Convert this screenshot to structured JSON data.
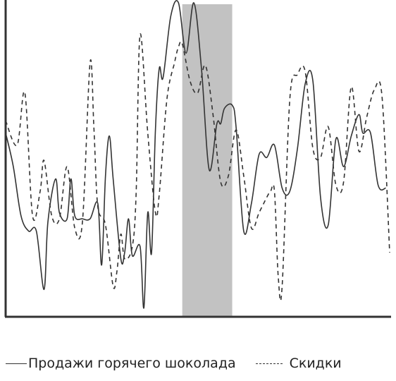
{
  "chart_data": {
    "type": "line",
    "title": "",
    "xlabel": "",
    "ylabel": "",
    "grid": false,
    "ticks_shown": false,
    "legend_position": "bottom",
    "x_range": [
      0,
      100
    ],
    "y_range": [
      0,
      100
    ],
    "highlight_band": {
      "x_start": 46,
      "x_end": 59,
      "color": "#c2c2c2"
    },
    "series": [
      {
        "name": "Продажи горячего шоколада",
        "style": "solid",
        "color": "#333333",
        "x": [
          0,
          2,
          4,
          6,
          8,
          10,
          11,
          13,
          14,
          16,
          17,
          18,
          20,
          22,
          24,
          25,
          26,
          27,
          28,
          30,
          31,
          32,
          33,
          35,
          36,
          37,
          38,
          39,
          40,
          41,
          43,
          45,
          47,
          49,
          51,
          53,
          55,
          56,
          57,
          59,
          60,
          62,
          64,
          66,
          68,
          70,
          72,
          74,
          76,
          78,
          80,
          82,
          84,
          86,
          88,
          90,
          92,
          93,
          95,
          97,
          99
        ],
        "y": [
          59,
          48,
          32,
          27,
          27,
          8,
          30,
          44,
          33,
          31,
          44,
          32,
          31,
          31,
          36,
          16,
          45,
          58,
          44,
          18,
          20,
          31,
          19,
          22,
          2,
          33,
          20,
          60,
          80,
          77,
          97,
          102,
          85,
          102,
          80,
          47,
          62,
          62,
          67,
          68,
          61,
          27,
          36,
          52,
          51,
          55,
          41,
          40,
          54,
          75,
          76,
          38,
          29,
          57,
          48,
          58,
          65,
          59,
          59,
          42,
          41
        ]
      },
      {
        "name": "Скидки",
        "style": "dashed",
        "color": "#333333",
        "x": [
          0,
          3,
          5,
          7,
          9,
          10,
          12,
          14,
          16,
          18,
          20,
          22,
          23,
          24,
          26,
          28,
          29,
          30,
          31,
          33,
          34,
          35,
          37,
          39,
          40,
          42,
          44,
          45,
          46,
          48,
          50,
          52,
          54,
          56,
          58,
          60,
          62,
          64,
          66,
          68,
          69,
          70,
          71,
          72,
          74,
          76,
          78,
          80,
          82,
          84,
          86,
          88,
          90,
          92,
          94,
          96,
          98,
          100
        ],
        "y": [
          63,
          55,
          72,
          32,
          40,
          50,
          32,
          31,
          48,
          28,
          30,
          82,
          60,
          35,
          29,
          9,
          14,
          26,
          18,
          22,
          40,
          91,
          59,
          33,
          39,
          70,
          82,
          87,
          88,
          76,
          72,
          81,
          65,
          43,
          45,
          60,
          45,
          28,
          33,
          38,
          40,
          40,
          12,
          9,
          70,
          78,
          79,
          54,
          51,
          61,
          42,
          43,
          74,
          53,
          64,
          73,
          71,
          20
        ]
      }
    ]
  }
}
